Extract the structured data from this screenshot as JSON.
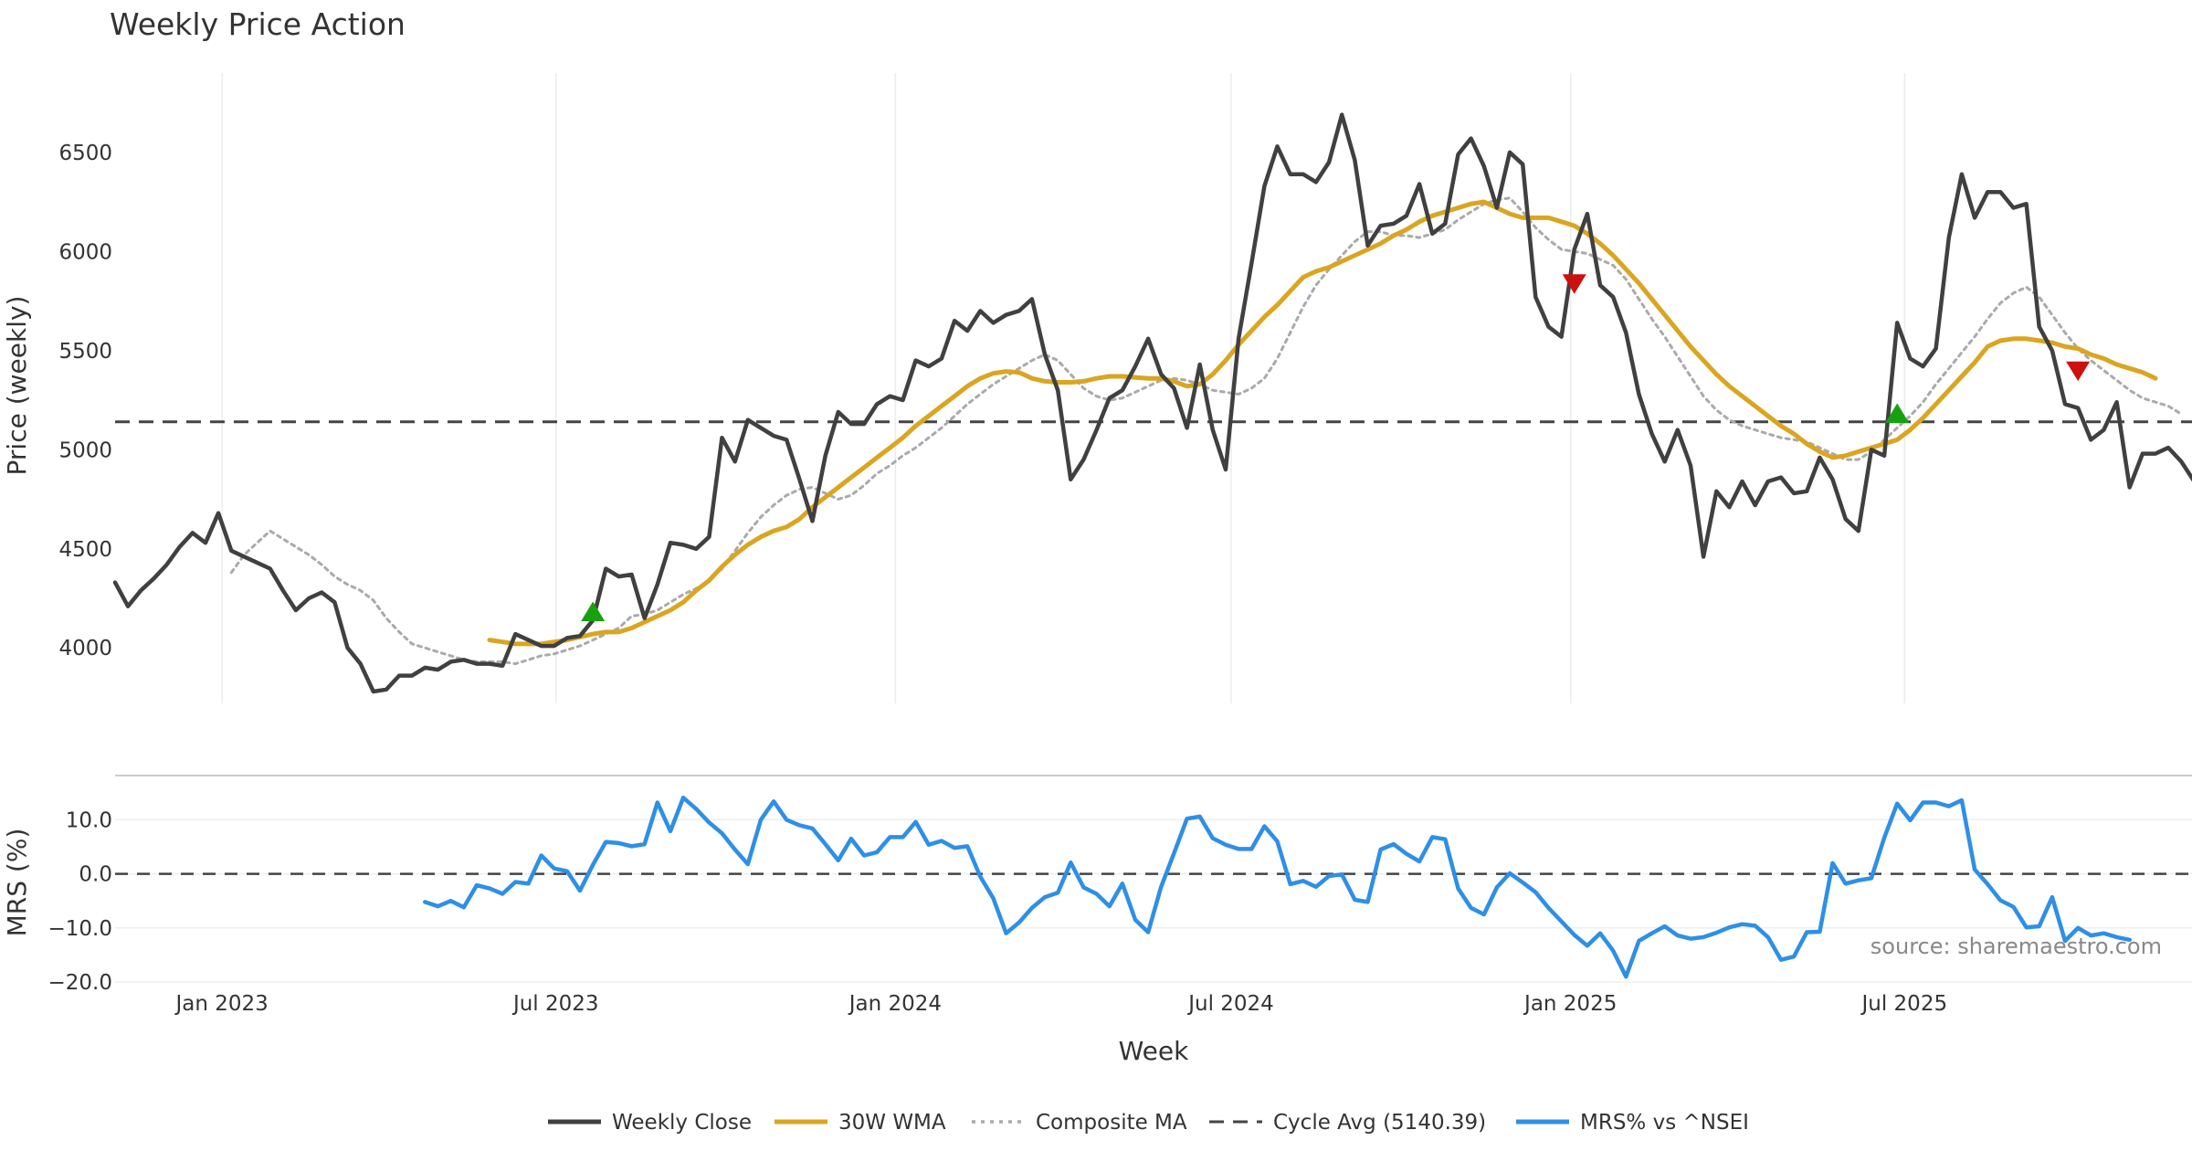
{
  "chart_data": [
    {
      "type": "line",
      "title": "Weekly Price Action",
      "ylabel": "Price (weekly)",
      "ylim": [
        3720,
        6900
      ],
      "xlim": [
        "2022-11-04",
        "2025-11-14"
      ],
      "grid": "vertical",
      "y_ticks": [
        {
          "v": 4000,
          "label": "4000"
        },
        {
          "v": 4500,
          "label": "4500"
        },
        {
          "v": 5000,
          "label": "5000"
        },
        {
          "v": 5500,
          "label": "5500"
        },
        {
          "v": 6000,
          "label": "6000"
        },
        {
          "v": 6500,
          "label": "6500"
        }
      ],
      "reference_line": {
        "name": "Cycle Avg (5140.39)",
        "value": 5140.39
      },
      "series": [
        {
          "name": "Weekly Close",
          "color": "#404040",
          "style": "solid",
          "start": "2022-11-04",
          "step_days": 7,
          "values": [
            4330,
            4210,
            4290,
            4350,
            4420,
            4510,
            4580,
            4530,
            4680,
            4490,
            4460,
            4430,
            4400,
            4290,
            4190,
            4250,
            4280,
            4230,
            4000,
            3920,
            3780,
            3790,
            3860,
            3860,
            3900,
            3890,
            3930,
            3940,
            3920,
            3920,
            3910,
            4070,
            4040,
            4010,
            4010,
            4050,
            4060,
            4140,
            4400,
            4360,
            4370,
            4150,
            4320,
            4530,
            4520,
            4500,
            4560,
            5060,
            4940,
            5150,
            5110,
            5070,
            5050,
            4850,
            4640,
            4970,
            5190,
            5130,
            5130,
            5230,
            5270,
            5250,
            5450,
            5420,
            5460,
            5650,
            5600,
            5700,
            5640,
            5680,
            5700,
            5760,
            5480,
            5300,
            4850,
            4950,
            5100,
            5260,
            5300,
            5420,
            5560,
            5380,
            5310,
            5110,
            5430,
            5100,
            4900,
            5560,
            5940,
            6330,
            6530,
            6390,
            6390,
            6350,
            6450,
            6690,
            6460,
            6030,
            6130,
            6140,
            6180,
            6340,
            6090,
            6140,
            6490,
            6570,
            6430,
            6220,
            6500,
            6440,
            5770,
            5620,
            5570,
            6010,
            6190,
            5830,
            5770,
            5590,
            5280,
            5080,
            4940,
            5100,
            4920,
            4460,
            4790,
            4710,
            4840,
            4720,
            4840,
            4860,
            4780,
            4790,
            4960,
            4850,
            4650,
            4590,
            5000,
            4970,
            5640,
            5460,
            5420,
            5510,
            6070,
            6390,
            6170,
            6300,
            6300,
            6220,
            6240,
            5620,
            5500,
            5230,
            5210,
            5050,
            5100,
            5240,
            4810,
            4980,
            4980,
            5010,
            4940,
            4840
          ]
        },
        {
          "name": "30W WMA",
          "color": "#DAA520",
          "style": "solid",
          "start": "2023-05-26",
          "step_days": 7,
          "values": [
            4040,
            4030,
            4020,
            4020,
            4020,
            4030,
            4040,
            4055,
            4070,
            4080,
            4080,
            4100,
            4130,
            4160,
            4190,
            4230,
            4290,
            4340,
            4410,
            4470,
            4520,
            4560,
            4590,
            4610,
            4650,
            4710,
            4760,
            4810,
            4860,
            4910,
            4960,
            5010,
            5060,
            5120,
            5170,
            5220,
            5270,
            5320,
            5360,
            5385,
            5395,
            5390,
            5360,
            5345,
            5340,
            5340,
            5345,
            5360,
            5370,
            5370,
            5365,
            5360,
            5360,
            5345,
            5320,
            5330,
            5380,
            5450,
            5530,
            5600,
            5670,
            5730,
            5800,
            5870,
            5900,
            5920,
            5950,
            5980,
            6010,
            6040,
            6080,
            6110,
            6150,
            6180,
            6200,
            6220,
            6240,
            6250,
            6220,
            6190,
            6170,
            6170,
            6170,
            6150,
            6130,
            6090,
            6040,
            5980,
            5910,
            5840,
            5760,
            5680,
            5600,
            5520,
            5450,
            5380,
            5320,
            5270,
            5220,
            5170,
            5120,
            5080,
            5030,
            4990,
            4960,
            4970,
            4990,
            5010,
            5030,
            5050,
            5100,
            5160,
            5230,
            5300,
            5370,
            5440,
            5520,
            5550,
            5560,
            5560,
            5550,
            5540,
            5520,
            5510,
            5480,
            5460,
            5430,
            5410,
            5390,
            5360
          ]
        },
        {
          "name": "Composite MA",
          "color": "#AAAAAA",
          "style": "dotted",
          "start": "2023-01-06",
          "step_days": 7,
          "values": [
            4380,
            4470,
            4530,
            4590,
            4550,
            4510,
            4470,
            4420,
            4360,
            4320,
            4290,
            4240,
            4150,
            4080,
            4020,
            4000,
            3980,
            3960,
            3940,
            3930,
            3930,
            3930,
            3920,
            3940,
            3960,
            3970,
            3990,
            4010,
            4040,
            4070,
            4100,
            4160,
            4170,
            4190,
            4230,
            4270,
            4300,
            4340,
            4400,
            4490,
            4580,
            4660,
            4720,
            4770,
            4800,
            4810,
            4780,
            4750,
            4770,
            4820,
            4880,
            4920,
            4970,
            5010,
            5060,
            5110,
            5170,
            5230,
            5280,
            5330,
            5370,
            5410,
            5450,
            5480,
            5450,
            5380,
            5310,
            5270,
            5250,
            5260,
            5290,
            5320,
            5350,
            5360,
            5350,
            5330,
            5300,
            5290,
            5280,
            5310,
            5360,
            5460,
            5590,
            5720,
            5830,
            5910,
            5980,
            6050,
            6100,
            6100,
            6080,
            6080,
            6070,
            6090,
            6110,
            6160,
            6200,
            6240,
            6260,
            6270,
            6200,
            6120,
            6060,
            6010,
            6000,
            5990,
            5960,
            5930,
            5860,
            5760,
            5660,
            5570,
            5470,
            5370,
            5270,
            5200,
            5150,
            5120,
            5100,
            5080,
            5060,
            5050,
            5040,
            5010,
            4980,
            4950,
            4950,
            4990,
            5050,
            5110,
            5170,
            5240,
            5330,
            5410,
            5490,
            5570,
            5660,
            5740,
            5790,
            5820,
            5770,
            5680,
            5590,
            5510,
            5450,
            5400,
            5350,
            5300,
            5260,
            5240,
            5220,
            5180
          ]
        }
      ],
      "markers": [
        {
          "type": "buy",
          "date": "2023-07-21",
          "value": 4180,
          "color": "#17A10F"
        },
        {
          "type": "sell",
          "date": "2025-01-03",
          "value": 5840,
          "color": "#CC1111"
        },
        {
          "type": "buy",
          "date": "2025-06-27",
          "value": 5180,
          "color": "#17A10F"
        },
        {
          "type": "sell",
          "date": "2025-10-03",
          "value": 5400,
          "color": "#CC1111"
        }
      ]
    },
    {
      "type": "line",
      "ylabel": "MRS (%)",
      "ylim": [
        -20,
        17
      ],
      "y_ticks": [
        {
          "v": -20,
          "label": "−20.0"
        },
        {
          "v": -10,
          "label": "−10.0"
        },
        {
          "v": 0,
          "label": "0.0"
        },
        {
          "v": 10,
          "label": "10.0"
        }
      ],
      "reference_line": {
        "value": 0
      },
      "series": [
        {
          "name": "MRS% vs ^NSEI",
          "color": "#2E8FE6",
          "style": "solid",
          "start": "2023-04-21",
          "step_days": 7,
          "values": [
            -5.2,
            -6.0,
            -5.0,
            -6.2,
            -2.1,
            -2.7,
            -3.7,
            -1.5,
            -1.8,
            3.4,
            1.0,
            0.5,
            -3.1,
            1.7,
            5.9,
            5.7,
            5.1,
            5.5,
            13.2,
            7.9,
            14.1,
            12.0,
            9.5,
            7.5,
            4.5,
            1.8,
            10.0,
            13.4,
            10.0,
            9.0,
            8.4,
            5.5,
            2.5,
            6.5,
            3.4,
            4.0,
            6.8,
            6.8,
            9.6,
            5.4,
            6.1,
            4.8,
            5.1,
            -0.5,
            -4.5,
            -11.0,
            -9.0,
            -6.3,
            -4.3,
            -3.5,
            2.1,
            -2.5,
            -3.7,
            -6.0,
            -1.8,
            -8.5,
            -10.8,
            -2.4,
            3.8,
            10.2,
            10.6,
            6.6,
            5.4,
            4.6,
            4.6,
            8.8,
            6.0,
            -1.9,
            -1.3,
            -2.4,
            -0.4,
            -0.1,
            -4.8,
            -5.2,
            4.5,
            5.5,
            3.7,
            2.3,
            6.8,
            6.4,
            -2.7,
            -6.3,
            -7.5,
            -2.5,
            0.1,
            -1.6,
            -3.4,
            -6.3,
            -8.8,
            -11.3,
            -13.3,
            -11.0,
            -14.2,
            -19.0,
            -12.4,
            -11.0,
            -9.7,
            -11.4,
            -12.0,
            -11.7,
            -10.9,
            -9.9,
            -9.3,
            -9.6,
            -11.7,
            -15.9,
            -15.3,
            -10.8,
            -10.7,
            2.0,
            -1.8,
            -1.2,
            -0.8,
            6.7,
            13.0,
            9.9,
            13.2,
            13.2,
            12.5,
            13.6,
            0.8,
            -1.9,
            -4.9,
            -6.1,
            -9.9,
            -9.7,
            -4.3,
            -12.4,
            -10.0,
            -11.4,
            -11.0,
            -11.7,
            -12.2
          ]
        }
      ]
    }
  ],
  "x_ticks": [
    {
      "date": "2023-01-01",
      "label": "Jan 2023"
    },
    {
      "date": "2023-07-01",
      "label": "Jul 2023"
    },
    {
      "date": "2024-01-01",
      "label": "Jan 2024"
    },
    {
      "date": "2024-07-01",
      "label": "Jul 2024"
    },
    {
      "date": "2025-01-01",
      "label": "Jan 2025"
    },
    {
      "date": "2025-07-01",
      "label": "Jul 2025"
    }
  ],
  "xlabel": "Week",
  "source": "source: sharemaestro.com",
  "legend": [
    {
      "label": "Weekly Close",
      "color": "#404040",
      "style": "solid"
    },
    {
      "label": "30W WMA",
      "color": "#DAA520",
      "style": "solid"
    },
    {
      "label": "Composite MA",
      "color": "#AAAAAA",
      "style": "dotted"
    },
    {
      "label": "Cycle Avg (5140.39)",
      "color": "#444444",
      "style": "dashed"
    },
    {
      "label": "MRS% vs ^NSEI",
      "color": "#2E8FE6",
      "style": "solid"
    }
  ]
}
